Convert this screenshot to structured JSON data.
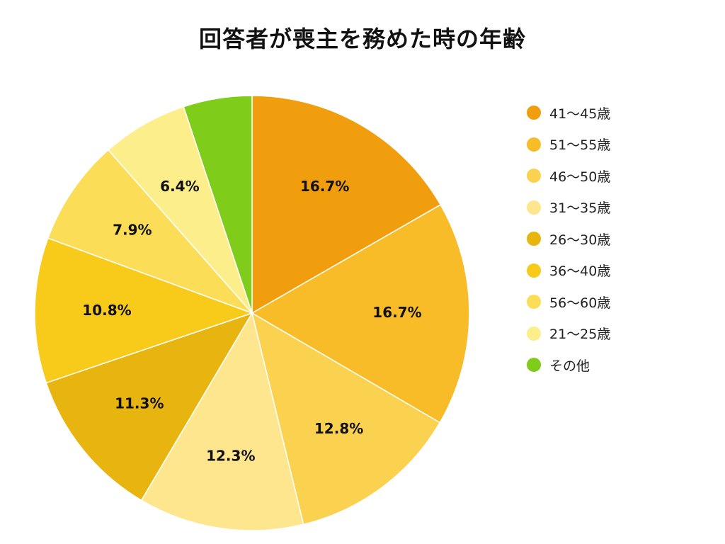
{
  "chart_data": {
    "type": "pie",
    "title": "回答者が喪主を務めた時の年齢",
    "legend_position": "right",
    "slices": [
      {
        "label": "41〜45歳",
        "value": 16.7,
        "value_label": "16.7%",
        "color": "#F19E0E"
      },
      {
        "label": "51〜55歳",
        "value": 16.7,
        "value_label": "16.7%",
        "color": "#F7BC27"
      },
      {
        "label": "46〜50歳",
        "value": 12.8,
        "value_label": "12.8%",
        "color": "#FBD24F"
      },
      {
        "label": "31〜35歳",
        "value": 12.3,
        "value_label": "12.3%",
        "color": "#FDE68D"
      },
      {
        "label": "26〜30歳",
        "value": 11.3,
        "value_label": "11.3%",
        "color": "#E8B410"
      },
      {
        "label": "36〜40歳",
        "value": 10.8,
        "value_label": "10.8%",
        "color": "#F8CA1A"
      },
      {
        "label": "56〜60歳",
        "value": 7.9,
        "value_label": "7.9%",
        "color": "#FBDD57"
      },
      {
        "label": "21〜25歳",
        "value": 6.4,
        "value_label": "6.4%",
        "color": "#FDEE8C"
      },
      {
        "label": "その他",
        "value": 5.1,
        "value_label": "",
        "color": "#7FCC1B"
      }
    ]
  }
}
